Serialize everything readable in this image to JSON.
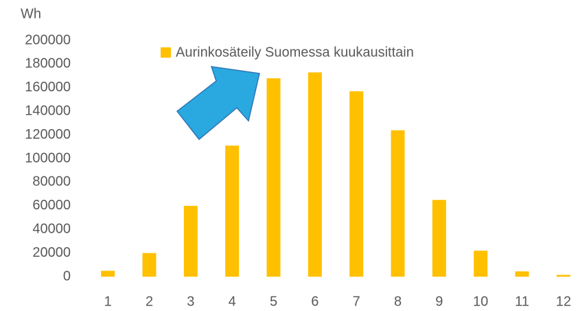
{
  "chart_data": {
    "type": "bar",
    "y_label": "Wh",
    "categories": [
      "1",
      "2",
      "3",
      "4",
      "5",
      "6",
      "7",
      "8",
      "9",
      "10",
      "11",
      "12"
    ],
    "series": [
      {
        "name": "Aurinkosäteily Suomessa kuukausittain",
        "color": "#ffc000",
        "values": [
          5000,
          20000,
          60000,
          111000,
          168000,
          173000,
          157000,
          124000,
          65000,
          22000,
          4500,
          1500
        ]
      }
    ],
    "ylim": [
      0,
      200000
    ],
    "yticks": [
      0,
      20000,
      40000,
      60000,
      80000,
      100000,
      120000,
      140000,
      160000,
      180000,
      200000
    ],
    "grid": false,
    "legend": "top"
  }
}
